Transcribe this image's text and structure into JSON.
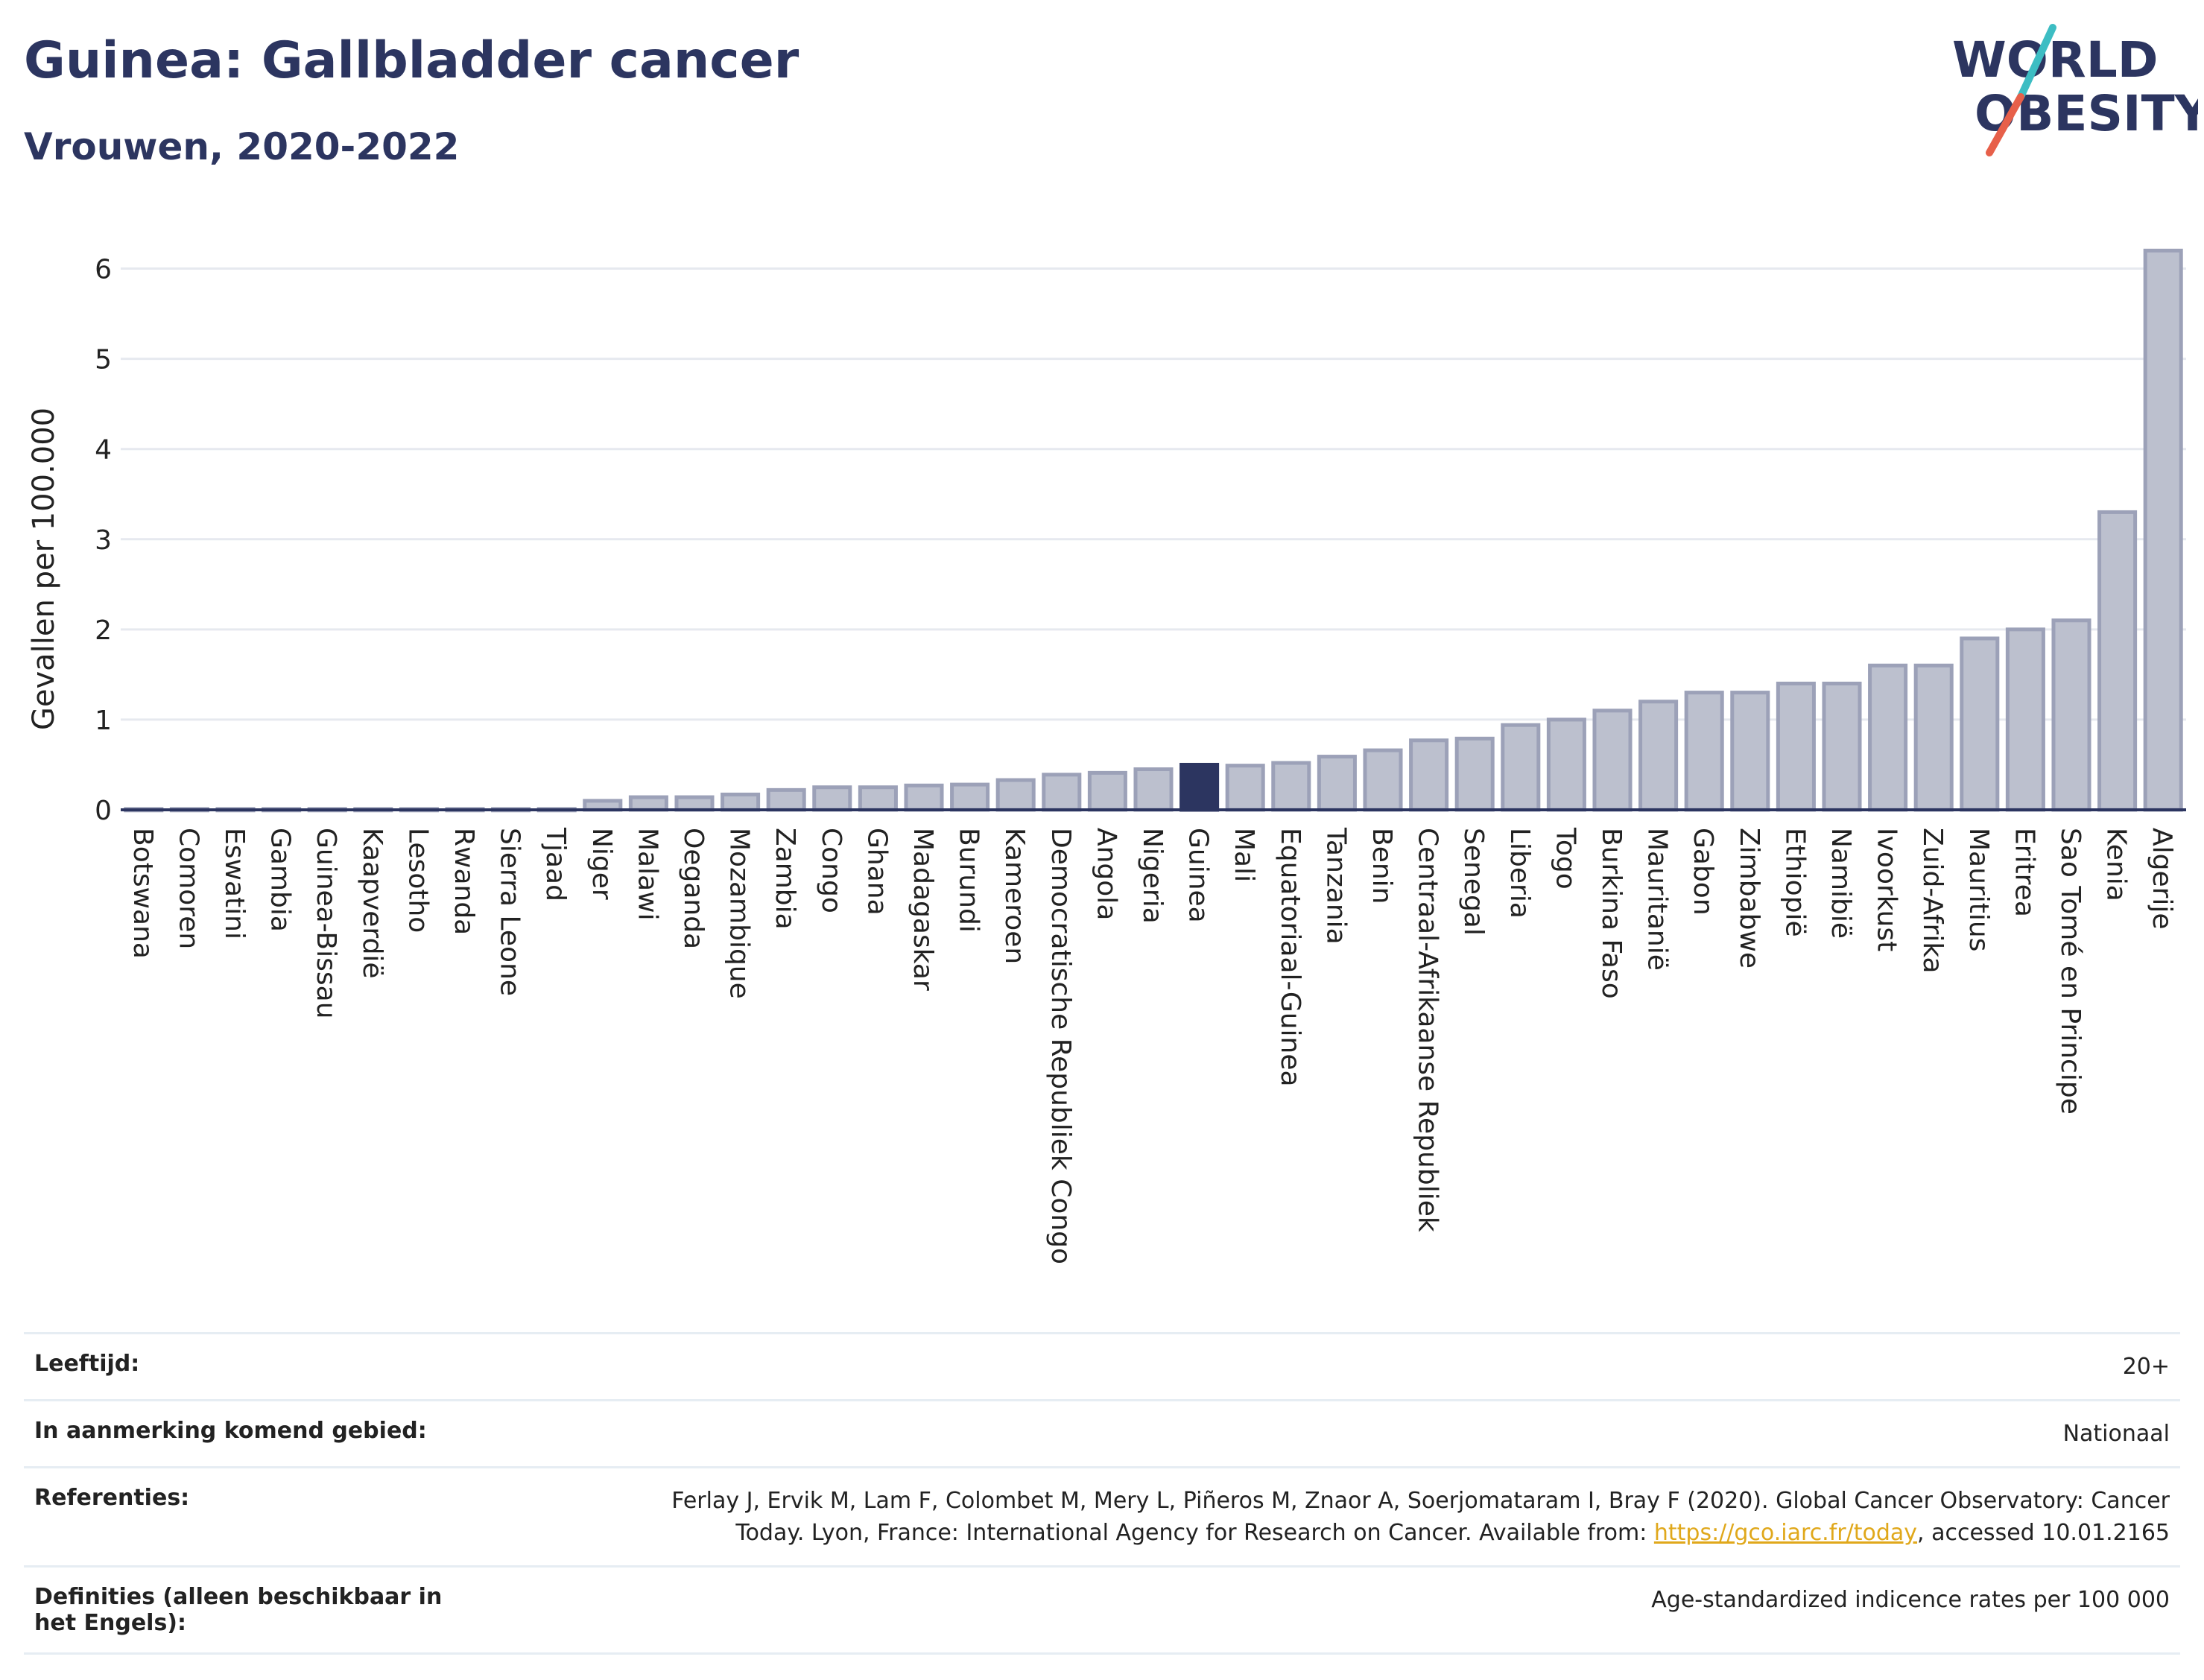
{
  "header": {
    "title": "Guinea: Gallbladder cancer",
    "subtitle": "Vrouwen, 2020-2022"
  },
  "logo": {
    "line1": "WORLD",
    "line2": "OBESITY",
    "slash_colors": [
      "#3dbdc3",
      "#e7604a"
    ]
  },
  "colors": {
    "bar": "#bcc0ce",
    "bar_stroke": "#9ca1b8",
    "highlight": "#2c3560",
    "grid": "#e6e9ef",
    "axis": "#2c3560",
    "title": "#2c3560"
  },
  "chart_data": {
    "type": "bar",
    "ylabel": "Gevallen per 100.000",
    "ylim": [
      0,
      6.5
    ],
    "yticks": [
      0,
      1,
      2,
      3,
      4,
      5,
      6
    ],
    "highlight": "Guinea",
    "categories": [
      "Botswana",
      "Comoren",
      "Eswatini",
      "Gambia",
      "Guinea-Bissau",
      "Kaapverdië",
      "Lesotho",
      "Rwanda",
      "Sierra Leone",
      "Tjaad",
      "Niger",
      "Malawi",
      "Oeganda",
      "Mozambique",
      "Zambia",
      "Congo",
      "Ghana",
      "Madagaskar",
      "Burundi",
      "Kameroen",
      "Democratische Republiek Congo",
      "Angola",
      "Nigeria",
      "Guinea",
      "Mali",
      "Equatoriaal-Guinea",
      "Tanzania",
      "Benin",
      "Centraal-Afrikaanse Republiek",
      "Senegal",
      "Liberia",
      "Togo",
      "Burkina Faso",
      "Mauritanië",
      "Gabon",
      "Zimbabwe",
      "Ethiopië",
      "Namibië",
      "Ivoorkust",
      "Zuid-Afrika",
      "Mauritius",
      "Eritrea",
      "Sao Tomé en Principe",
      "Kenia",
      "Algerije"
    ],
    "values": [
      0.01,
      0.01,
      0.01,
      0.01,
      0.01,
      0.01,
      0.01,
      0.01,
      0.01,
      0.01,
      0.1,
      0.14,
      0.14,
      0.17,
      0.22,
      0.25,
      0.25,
      0.27,
      0.28,
      0.33,
      0.39,
      0.41,
      0.45,
      0.5,
      0.49,
      0.52,
      0.59,
      0.66,
      0.77,
      0.79,
      0.94,
      1.0,
      1.1,
      1.2,
      1.3,
      1.3,
      1.4,
      1.4,
      1.6,
      1.6,
      1.9,
      2.0,
      2.1,
      3.3,
      6.2
    ]
  },
  "info": {
    "age_label": "Leeftijd:",
    "age_value": "20+",
    "area_label": "In aanmerking komend gebied:",
    "area_value": "Nationaal",
    "ref_label": "Referenties:",
    "ref_text_1": "Ferlay J, Ervik M, Lam F, Colombet M, Mery L, Piñeros M, Znaor A, Soerjomataram I, Bray F (2020). Global Cancer Observatory: Cancer",
    "ref_text_2": "Today. Lyon, France: International Agency for Research on Cancer. Available from: ",
    "ref_link": "https://gco.iarc.fr/today",
    "ref_text_3": ", accessed 10.01.2165",
    "def_label": "Definities (alleen beschikbaar in het Engels):",
    "def_value": "Age-standardized indicence rates per 100 000"
  }
}
